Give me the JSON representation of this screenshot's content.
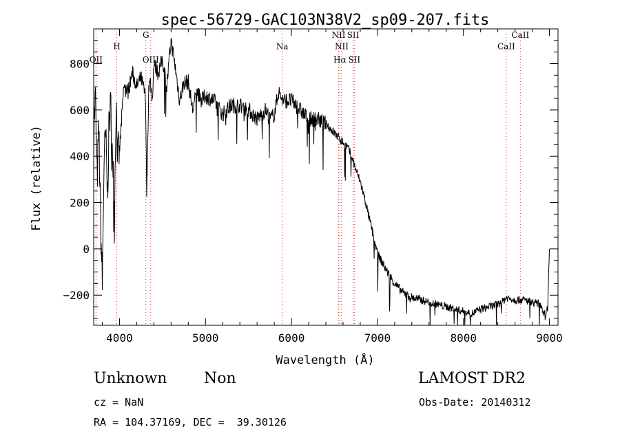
{
  "chart_data": {
    "type": "line",
    "title": "spec-56729-GAC103N38V2_sp09-207.fits",
    "xlabel": "Wavelength (Å)",
    "ylabel": "Flux (relative)",
    "xlim": [
      3700,
      9100
    ],
    "ylim": [
      -330,
      950
    ],
    "xticks": [
      4000,
      5000,
      6000,
      7000,
      8000,
      9000
    ],
    "xtick_labels": [
      "4000",
      "5000",
      "6000",
      "7000",
      "8000",
      "9000"
    ],
    "yticks": [
      -200,
      0,
      200,
      400,
      600,
      800
    ],
    "ytick_labels": [
      "−200",
      "0",
      "200",
      "400",
      "600",
      "800"
    ],
    "grid": false,
    "series": [
      {
        "x": [
          3700,
          3720,
          3740,
          3760,
          3780,
          3800,
          3820,
          3840,
          3860,
          3880,
          3900,
          3920,
          3940,
          3960,
          3980,
          4000,
          4050,
          4100,
          4150,
          4200,
          4250,
          4300,
          4320,
          4340,
          4360,
          4380,
          4400,
          4450,
          4500,
          4550,
          4600,
          4650,
          4700,
          4750,
          4800,
          4850,
          4900,
          4950,
          5000,
          5100,
          5200,
          5300,
          5400,
          5500,
          5600,
          5700,
          5750,
          5800,
          5850,
          5900,
          6000,
          6100,
          6200,
          6300,
          6400,
          6450,
          6500,
          6550,
          6600,
          6650,
          6700,
          6750,
          6800,
          6850,
          6900,
          6950,
          7000,
          7100,
          7200,
          7300,
          7400,
          7500,
          7600,
          7700,
          7800,
          7900,
          8000,
          8100,
          8200,
          8300,
          8400,
          8450,
          8500,
          8600,
          8700,
          8800,
          8900,
          8950,
          8980,
          9000
        ],
        "y": [
          500,
          660,
          300,
          520,
          120,
          -150,
          380,
          480,
          230,
          560,
          610,
          420,
          120,
          640,
          400,
          420,
          700,
          680,
          760,
          700,
          740,
          660,
          280,
          700,
          720,
          640,
          800,
          760,
          820,
          700,
          900,
          780,
          640,
          720,
          720,
          600,
          680,
          640,
          660,
          640,
          580,
          620,
          620,
          600,
          560,
          600,
          560,
          580,
          680,
          640,
          640,
          600,
          560,
          560,
          540,
          520,
          500,
          480,
          460,
          440,
          400,
          340,
          290,
          220,
          140,
          60,
          -20,
          -90,
          -150,
          -190,
          -210,
          -220,
          -230,
          -240,
          -250,
          -260,
          -270,
          -280,
          -260,
          -250,
          -240,
          -230,
          -210,
          -220,
          -220,
          -230,
          -240,
          -290,
          -250,
          0
        ]
      }
    ],
    "lines": [
      {
        "name": "OII",
        "x": 3727,
        "label_y": 805
      },
      {
        "name": "H",
        "x": 3969,
        "label_y": 862
      },
      {
        "name": "G",
        "x": 4307,
        "label_y": 912
      },
      {
        "name": "OIII",
        "x": 4363,
        "label_y": 805
      },
      {
        "name": "Na",
        "x": 5893,
        "label_y": 862
      },
      {
        "name": "NII",
        "x": 6548,
        "label_y": 912
      },
      {
        "name": "NII",
        "x": 6584,
        "label_y": 862
      },
      {
        "name": "Hα",
        "x": 6563,
        "label_y": 805
      },
      {
        "name": "SII",
        "x": 6717,
        "label_y": 912
      },
      {
        "name": "SII",
        "x": 6731,
        "label_y": 805
      },
      {
        "name": "CaII",
        "x": 8498,
        "label_y": 862
      },
      {
        "name": "CaII",
        "x": 8662,
        "label_y": 912
      }
    ]
  },
  "info": {
    "obj_class": "Unknown",
    "obj_subclass": "Non",
    "survey": "LAMOST DR2",
    "cz": "cz = NaN",
    "obs_date": "Obs-Date: 20140312",
    "radec": "RA = 104.37169, DEC =  39.30126"
  }
}
